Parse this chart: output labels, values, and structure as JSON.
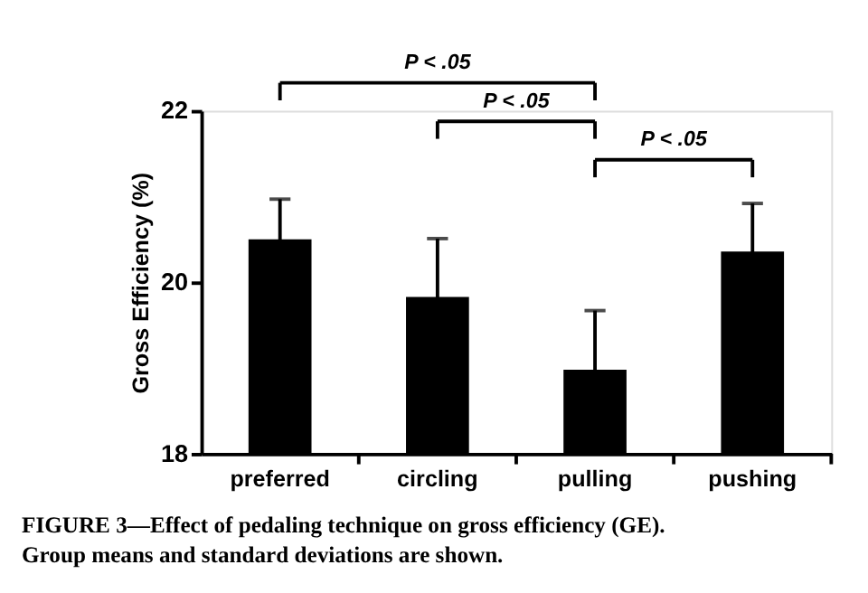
{
  "chart_data": {
    "type": "bar",
    "ylabel": "Gross Efficiency (%)",
    "categories": [
      "preferred",
      "circling",
      "pulling",
      "pushing"
    ],
    "values": [
      20.5,
      19.83,
      18.98,
      20.36
    ],
    "errors": [
      0.47,
      0.68,
      0.69,
      0.56
    ],
    "color": "#000000",
    "ylim": [
      18,
      22
    ],
    "yticks": [
      18,
      20,
      22
    ],
    "grid": false,
    "annotations": [
      "P < .05",
      "P < .05",
      "P < .05",
      "FIGURE 3—Effect of pedaling technique on gross efficiency (GE).",
      "Group means and standard deviations are shown."
    ]
  }
}
